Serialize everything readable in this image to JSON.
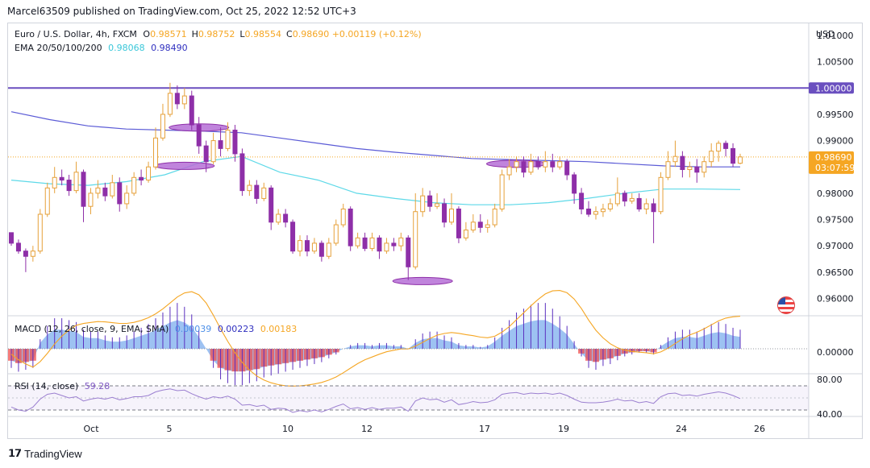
{
  "header": {
    "published": "Marcel63509 published on TradingView.com, Oct 25, 2022 12:52 UTC+3",
    "symbol": "Euro / U.S. Dollar, 4h, FXCM",
    "ohlc": [
      {
        "k": "O",
        "v": "0.98571"
      },
      {
        "k": "H",
        "v": "0.98752"
      },
      {
        "k": "L",
        "v": "0.98554"
      },
      {
        "k": "C",
        "v": "0.98690"
      }
    ],
    "change": "+0.00119 (+0.12%)",
    "ema_label": "EMA 20/50/100/200",
    "ema_values": [
      "0.98068",
      "0.98490"
    ],
    "currency": "USD"
  },
  "colors": {
    "up": "#f5a623",
    "down": "#8e2fa8",
    "ema_cyan": "#5ed9e8",
    "ema_blue": "#5b5bd6",
    "resistance": "#6a4fbf",
    "ellipse": "#b56fd6",
    "price_tag": "#f5a623",
    "macd_pos": "#4c8fe8",
    "macd_neg": "#f04e4e",
    "macd_signal": "#f5a623",
    "rsi": "#9b7fd0"
  },
  "price_tag": {
    "value": "0.98690",
    "countdown": "03:07:59"
  },
  "resistance_tag": "1.00000",
  "macd": {
    "label": "MACD (12, 26, close, 9, EMA, SMA)",
    "values": [
      "0.00039",
      "0.00223",
      "0.00183"
    ],
    "zero_label": "0.00000"
  },
  "rsi": {
    "label": "RSI (14, close)",
    "value": "59.28",
    "ticks": [
      "80.00",
      "40.00"
    ]
  },
  "footer": {
    "brand": "TradingView"
  },
  "chart_data": {
    "type": "candlestick",
    "title": "Euro / U.S. Dollar, 4h, FXCM",
    "y_ticks": [
      1.01,
      1.005,
      1.0,
      0.995,
      0.99,
      0.985,
      0.98,
      0.975,
      0.97,
      0.965,
      0.96
    ],
    "y_tick_labels": [
      "1.01000",
      "1.00500",
      "1.00000",
      "0.99500",
      "0.99000",
      "",
      "0.98000",
      "0.97500",
      "0.97000",
      "0.96500",
      "0.96000"
    ],
    "ylim": [
      0.9567,
      1.0123
    ],
    "x_ticks": [
      "Oct",
      "5",
      "10",
      "12",
      "17",
      "19",
      "24",
      "26"
    ],
    "horizontal_line": 1.0,
    "last_price": 0.9869,
    "candles": [
      [
        0.9725,
        0.9705,
        0.9725,
        0.97
      ],
      [
        0.9705,
        0.969,
        0.9712,
        0.9685
      ],
      [
        0.969,
        0.968,
        0.9695,
        0.965
      ],
      [
        0.968,
        0.969,
        0.97,
        0.967
      ],
      [
        0.969,
        0.976,
        0.977,
        0.9685
      ],
      [
        0.976,
        0.981,
        0.982,
        0.9755
      ],
      [
        0.981,
        0.983,
        0.985,
        0.98
      ],
      [
        0.983,
        0.9825,
        0.9845,
        0.9815
      ],
      [
        0.9825,
        0.9805,
        0.9835,
        0.9795
      ],
      [
        0.9805,
        0.984,
        0.986,
        0.98
      ],
      [
        0.984,
        0.9775,
        0.9845,
        0.9745
      ],
      [
        0.9775,
        0.98,
        0.981,
        0.976
      ],
      [
        0.98,
        0.981,
        0.9825,
        0.979
      ],
      [
        0.981,
        0.9795,
        0.982,
        0.9785
      ],
      [
        0.9795,
        0.982,
        0.9835,
        0.979
      ],
      [
        0.982,
        0.978,
        0.983,
        0.9765
      ],
      [
        0.978,
        0.98,
        0.9815,
        0.977
      ],
      [
        0.98,
        0.983,
        0.984,
        0.9795
      ],
      [
        0.983,
        0.9825,
        0.9845,
        0.9815
      ],
      [
        0.9825,
        0.985,
        0.986,
        0.982
      ],
      [
        0.985,
        0.9905,
        0.9925,
        0.9845
      ],
      [
        0.9905,
        0.995,
        0.997,
        0.99
      ],
      [
        0.995,
        0.999,
        1.001,
        0.9945
      ],
      [
        0.999,
        0.997,
        1.0005,
        0.996
      ],
      [
        0.997,
        0.9985,
        1.0,
        0.996
      ],
      [
        0.9985,
        0.993,
        0.9995,
        0.992
      ],
      [
        0.993,
        0.989,
        0.9945,
        0.9875
      ],
      [
        0.989,
        0.986,
        0.99,
        0.984
      ],
      [
        0.986,
        0.99,
        0.9915,
        0.9855
      ],
      [
        0.99,
        0.9885,
        0.9925,
        0.987
      ],
      [
        0.9885,
        0.992,
        0.9935,
        0.988
      ],
      [
        0.992,
        0.9875,
        0.993,
        0.986
      ],
      [
        0.9875,
        0.9805,
        0.9885,
        0.9795
      ],
      [
        0.9805,
        0.9815,
        0.9825,
        0.9795
      ],
      [
        0.9815,
        0.979,
        0.9825,
        0.978
      ],
      [
        0.979,
        0.981,
        0.982,
        0.9785
      ],
      [
        0.981,
        0.9745,
        0.9815,
        0.973
      ],
      [
        0.9745,
        0.976,
        0.977,
        0.974
      ],
      [
        0.976,
        0.9745,
        0.977,
        0.9735
      ],
      [
        0.9745,
        0.969,
        0.975,
        0.9685
      ],
      [
        0.969,
        0.971,
        0.972,
        0.968
      ],
      [
        0.971,
        0.969,
        0.972,
        0.968
      ],
      [
        0.969,
        0.9705,
        0.9715,
        0.9685
      ],
      [
        0.9705,
        0.968,
        0.971,
        0.967
      ],
      [
        0.968,
        0.9705,
        0.9715,
        0.9675
      ],
      [
        0.9705,
        0.974,
        0.975,
        0.97
      ],
      [
        0.974,
        0.977,
        0.978,
        0.9735
      ],
      [
        0.977,
        0.97,
        0.9775,
        0.969
      ],
      [
        0.97,
        0.9715,
        0.9725,
        0.9695
      ],
      [
        0.9715,
        0.9695,
        0.9725,
        0.969
      ],
      [
        0.9695,
        0.9715,
        0.9725,
        0.969
      ],
      [
        0.9715,
        0.969,
        0.972,
        0.9675
      ],
      [
        0.969,
        0.9705,
        0.9715,
        0.9685
      ],
      [
        0.9705,
        0.97,
        0.9715,
        0.969
      ],
      [
        0.97,
        0.9715,
        0.9725,
        0.969
      ],
      [
        0.9715,
        0.966,
        0.972,
        0.9635
      ],
      [
        0.966,
        0.9765,
        0.98,
        0.9655
      ],
      [
        0.9765,
        0.9795,
        0.981,
        0.9755
      ],
      [
        0.9795,
        0.9775,
        0.9805,
        0.9765
      ],
      [
        0.9775,
        0.978,
        0.98,
        0.977
      ],
      [
        0.978,
        0.9745,
        0.979,
        0.9735
      ],
      [
        0.9745,
        0.977,
        0.98,
        0.974
      ],
      [
        0.977,
        0.9715,
        0.9775,
        0.9705
      ],
      [
        0.9715,
        0.973,
        0.9745,
        0.971
      ],
      [
        0.973,
        0.9745,
        0.976,
        0.9725
      ],
      [
        0.9745,
        0.9735,
        0.976,
        0.9725
      ],
      [
        0.9735,
        0.974,
        0.975,
        0.9725
      ],
      [
        0.974,
        0.977,
        0.978,
        0.9735
      ],
      [
        0.977,
        0.9835,
        0.9845,
        0.9765
      ],
      [
        0.9835,
        0.985,
        0.9865,
        0.9825
      ],
      [
        0.985,
        0.986,
        0.987,
        0.984
      ],
      [
        0.986,
        0.984,
        0.987,
        0.983
      ],
      [
        0.984,
        0.986,
        0.9875,
        0.9835
      ],
      [
        0.986,
        0.985,
        0.987,
        0.9845
      ],
      [
        0.985,
        0.986,
        0.988,
        0.984
      ],
      [
        0.986,
        0.985,
        0.9875,
        0.984
      ],
      [
        0.985,
        0.986,
        0.987,
        0.9845
      ],
      [
        0.986,
        0.9835,
        0.9865,
        0.9825
      ],
      [
        0.9835,
        0.98,
        0.984,
        0.978
      ],
      [
        0.98,
        0.977,
        0.981,
        0.976
      ],
      [
        0.977,
        0.976,
        0.9785,
        0.9755
      ],
      [
        0.976,
        0.9765,
        0.9775,
        0.975
      ],
      [
        0.9765,
        0.977,
        0.978,
        0.9755
      ],
      [
        0.977,
        0.978,
        0.979,
        0.9765
      ],
      [
        0.978,
        0.98,
        0.983,
        0.9775
      ],
      [
        0.98,
        0.9785,
        0.9805,
        0.9775
      ],
      [
        0.9785,
        0.979,
        0.98,
        0.978
      ],
      [
        0.979,
        0.977,
        0.98,
        0.9765
      ],
      [
        0.977,
        0.978,
        0.979,
        0.976
      ],
      [
        0.978,
        0.9765,
        0.979,
        0.9705
      ],
      [
        0.9765,
        0.983,
        0.984,
        0.976
      ],
      [
        0.983,
        0.986,
        0.988,
        0.9825
      ],
      [
        0.986,
        0.987,
        0.99,
        0.985
      ],
      [
        0.987,
        0.9845,
        0.988,
        0.983
      ],
      [
        0.9845,
        0.985,
        0.986,
        0.983
      ],
      [
        0.985,
        0.984,
        0.9865,
        0.982
      ],
      [
        0.984,
        0.986,
        0.987,
        0.983
      ],
      [
        0.986,
        0.988,
        0.9895,
        0.985
      ],
      [
        0.988,
        0.9895,
        0.99,
        0.986
      ],
      [
        0.9895,
        0.9885,
        0.99,
        0.987
      ],
      [
        0.9885,
        0.9857,
        0.9895,
        0.985
      ],
      [
        0.9857,
        0.9869,
        0.9875,
        0.9855
      ]
    ],
    "ema_series": [
      {
        "values": [
          0.9825,
          0.9818,
          0.9815,
          0.9822,
          0.9835,
          0.986,
          0.987,
          0.984,
          0.9825,
          0.98,
          0.979,
          0.9782,
          0.9778,
          0.9778,
          0.9782,
          0.979,
          0.98,
          0.9808,
          0.9808,
          0.9807
        ]
      },
      {
        "values": [
          0.9955,
          0.994,
          0.9928,
          0.9922,
          0.992,
          0.9918,
          0.9915,
          0.9905,
          0.9895,
          0.9885,
          0.9878,
          0.9872,
          0.9866,
          0.9864,
          0.9862,
          0.986,
          0.9856,
          0.9852,
          0.985,
          0.985
        ]
      }
    ],
    "ellipses": [
      {
        "x_index": 26,
        "y": 0.9925
      },
      {
        "x_index": 24,
        "y": 0.9852
      },
      {
        "x_index": 57,
        "y": 0.9633
      },
      {
        "x_index": 70,
        "y": 0.9856
      }
    ],
    "macd_histogram": [
      -0.001,
      -0.0012,
      -0.0011,
      -0.001,
      0.0005,
      0.0012,
      0.0016,
      0.0016,
      0.0015,
      0.0014,
      0.001,
      0.0009,
      0.0009,
      0.0007,
      0.0006,
      0.0006,
      0.0007,
      0.0009,
      0.0011,
      0.0013,
      0.0016,
      0.0019,
      0.0022,
      0.0024,
      0.0022,
      0.0018,
      0.001,
      0.0,
      -0.001,
      -0.0016,
      -0.0018,
      -0.0019,
      -0.0019,
      -0.0018,
      -0.0017,
      -0.0015,
      -0.0014,
      -0.0013,
      -0.0012,
      -0.0011,
      -0.001,
      -0.0009,
      -0.0008,
      -0.0007,
      -0.0005,
      -0.0003,
      0.0,
      0.0002,
      0.0003,
      0.0003,
      0.0002,
      0.0003,
      0.0003,
      0.0002,
      0.0002,
      0.0,
      0.0005,
      0.0008,
      0.0009,
      0.0009,
      0.0007,
      0.0006,
      0.0003,
      0.0002,
      0.0002,
      0.0001,
      0.0002,
      0.0006,
      0.0011,
      0.0015,
      0.0019,
      0.0021,
      0.0023,
      0.0024,
      0.0024,
      0.0021,
      0.0017,
      0.0012,
      0.0004,
      -0.0004,
      -0.001,
      -0.0011,
      -0.0009,
      -0.0008,
      -0.0006,
      -0.0004,
      -0.0003,
      -0.0002,
      -0.0002,
      -0.0003,
      0.0002,
      0.0006,
      0.0009,
      0.001,
      0.001,
      0.0009,
      0.0011,
      0.0013,
      0.0014,
      0.0013,
      0.0011,
      0.001
    ],
    "rsi_values": [
      45,
      40,
      38,
      45,
      58,
      66,
      68,
      64,
      60,
      62,
      55,
      58,
      60,
      58,
      61,
      57,
      59,
      62,
      62,
      64,
      70,
      73,
      75,
      72,
      73,
      67,
      62,
      58,
      62,
      60,
      63,
      58,
      48,
      49,
      46,
      48,
      41,
      43,
      42,
      36,
      39,
      37,
      40,
      37,
      41,
      46,
      50,
      42,
      44,
      41,
      44,
      41,
      43,
      43,
      45,
      38,
      55,
      60,
      57,
      58,
      53,
      57,
      49,
      51,
      54,
      52,
      53,
      57,
      66,
      68,
      69,
      66,
      68,
      67,
      68,
      66,
      68,
      64,
      58,
      53,
      52,
      52,
      53,
      55,
      58,
      55,
      56,
      52,
      54,
      51,
      62,
      67,
      68,
      64,
      65,
      63,
      66,
      68,
      70,
      68,
      64,
      59
    ]
  }
}
